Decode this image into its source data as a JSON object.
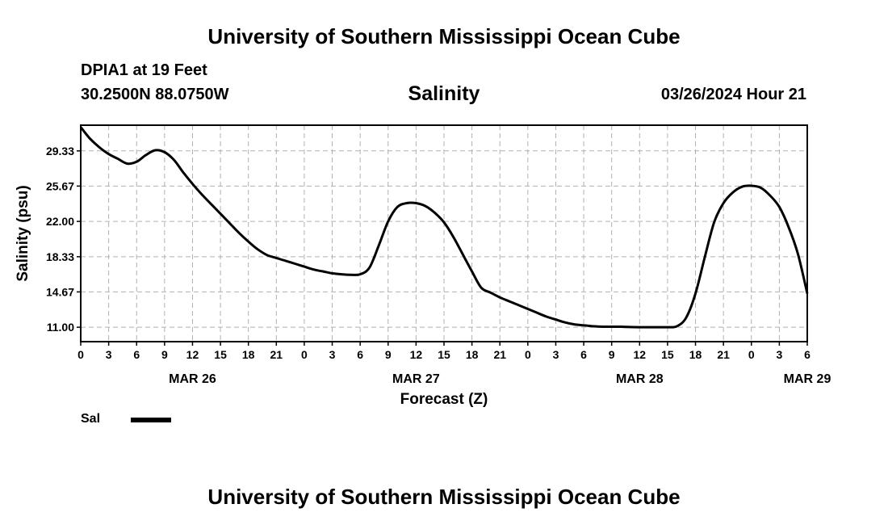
{
  "header": {
    "main_title": "University of Southern Mississippi Ocean Cube",
    "station": "DPIA1 at 19 Feet",
    "coordinates": "30.2500N  88.0750W",
    "variable": "Salinity",
    "datetime": "03/26/2024 Hour 21"
  },
  "footer": {
    "title": "University of Southern Mississippi Ocean Cube"
  },
  "legend": {
    "label": "Sal",
    "color": "#000000"
  },
  "chart_data": {
    "type": "line",
    "title": "Salinity",
    "xlabel": "Forecast (Z)",
    "ylabel": "Salinity (psu)",
    "xlim": [
      0,
      78
    ],
    "ylim": [
      9.5,
      32
    ],
    "x_unit": "hours from 00Z MAR 26",
    "grid": true,
    "x_ticks": [
      0,
      3,
      6,
      9,
      12,
      15,
      18,
      21,
      24,
      27,
      30,
      33,
      36,
      39,
      42,
      45,
      48,
      51,
      54,
      57,
      60,
      63,
      66,
      69,
      72,
      75,
      78
    ],
    "x_tick_labels": [
      "0",
      "3",
      "6",
      "9",
      "12",
      "15",
      "18",
      "21",
      "0",
      "3",
      "6",
      "9",
      "12",
      "15",
      "18",
      "21",
      "0",
      "3",
      "6",
      "9",
      "12",
      "15",
      "18",
      "21",
      "0",
      "3",
      "6"
    ],
    "y_ticks": [
      11.0,
      14.67,
      18.33,
      22.0,
      25.67,
      29.33
    ],
    "y_tick_labels": [
      "11.00",
      "14.67",
      "18.33",
      "22.00",
      "25.67",
      "29.33"
    ],
    "date_labels": [
      {
        "x": 12,
        "label": "MAR 26"
      },
      {
        "x": 36,
        "label": "MAR 27"
      },
      {
        "x": 60,
        "label": "MAR 28"
      },
      {
        "x": 78,
        "label": "MAR 29"
      }
    ],
    "series": [
      {
        "name": "Sal",
        "x": [
          0,
          1,
          2,
          3,
          4,
          5,
          6,
          7,
          8,
          9,
          10,
          11,
          12,
          13,
          14,
          15,
          16,
          17,
          18,
          19,
          20,
          21,
          22,
          23,
          24,
          25,
          26,
          27,
          28,
          29,
          30,
          31,
          32,
          33,
          34,
          35,
          36,
          37,
          38,
          39,
          40,
          41,
          42,
          43,
          44,
          45,
          46,
          47,
          48,
          49,
          50,
          51,
          52,
          53,
          54,
          55,
          56,
          57,
          58,
          59,
          60,
          61,
          62,
          63,
          64,
          65,
          66,
          67,
          68,
          69,
          70,
          71,
          72,
          73,
          74,
          75,
          76,
          77,
          78
        ],
        "values": [
          31.8,
          30.6,
          29.7,
          29.0,
          28.5,
          28.0,
          28.2,
          28.9,
          29.4,
          29.2,
          28.4,
          27.1,
          25.9,
          24.8,
          23.8,
          22.8,
          21.8,
          20.8,
          19.9,
          19.1,
          18.5,
          18.2,
          17.9,
          17.6,
          17.3,
          17.0,
          16.8,
          16.6,
          16.5,
          16.45,
          16.5,
          17.2,
          19.5,
          22.0,
          23.5,
          23.9,
          23.9,
          23.6,
          22.9,
          21.9,
          20.4,
          18.6,
          16.8,
          15.1,
          14.6,
          14.1,
          13.7,
          13.3,
          12.9,
          12.5,
          12.1,
          11.8,
          11.5,
          11.3,
          11.2,
          11.1,
          11.05,
          11.05,
          11.05,
          11.02,
          11.0,
          11.0,
          11.0,
          11.0,
          11.1,
          12.0,
          14.5,
          18.3,
          21.9,
          23.9,
          25.0,
          25.6,
          25.7,
          25.5,
          24.7,
          23.5,
          21.4,
          18.6,
          14.5
        ]
      }
    ]
  }
}
